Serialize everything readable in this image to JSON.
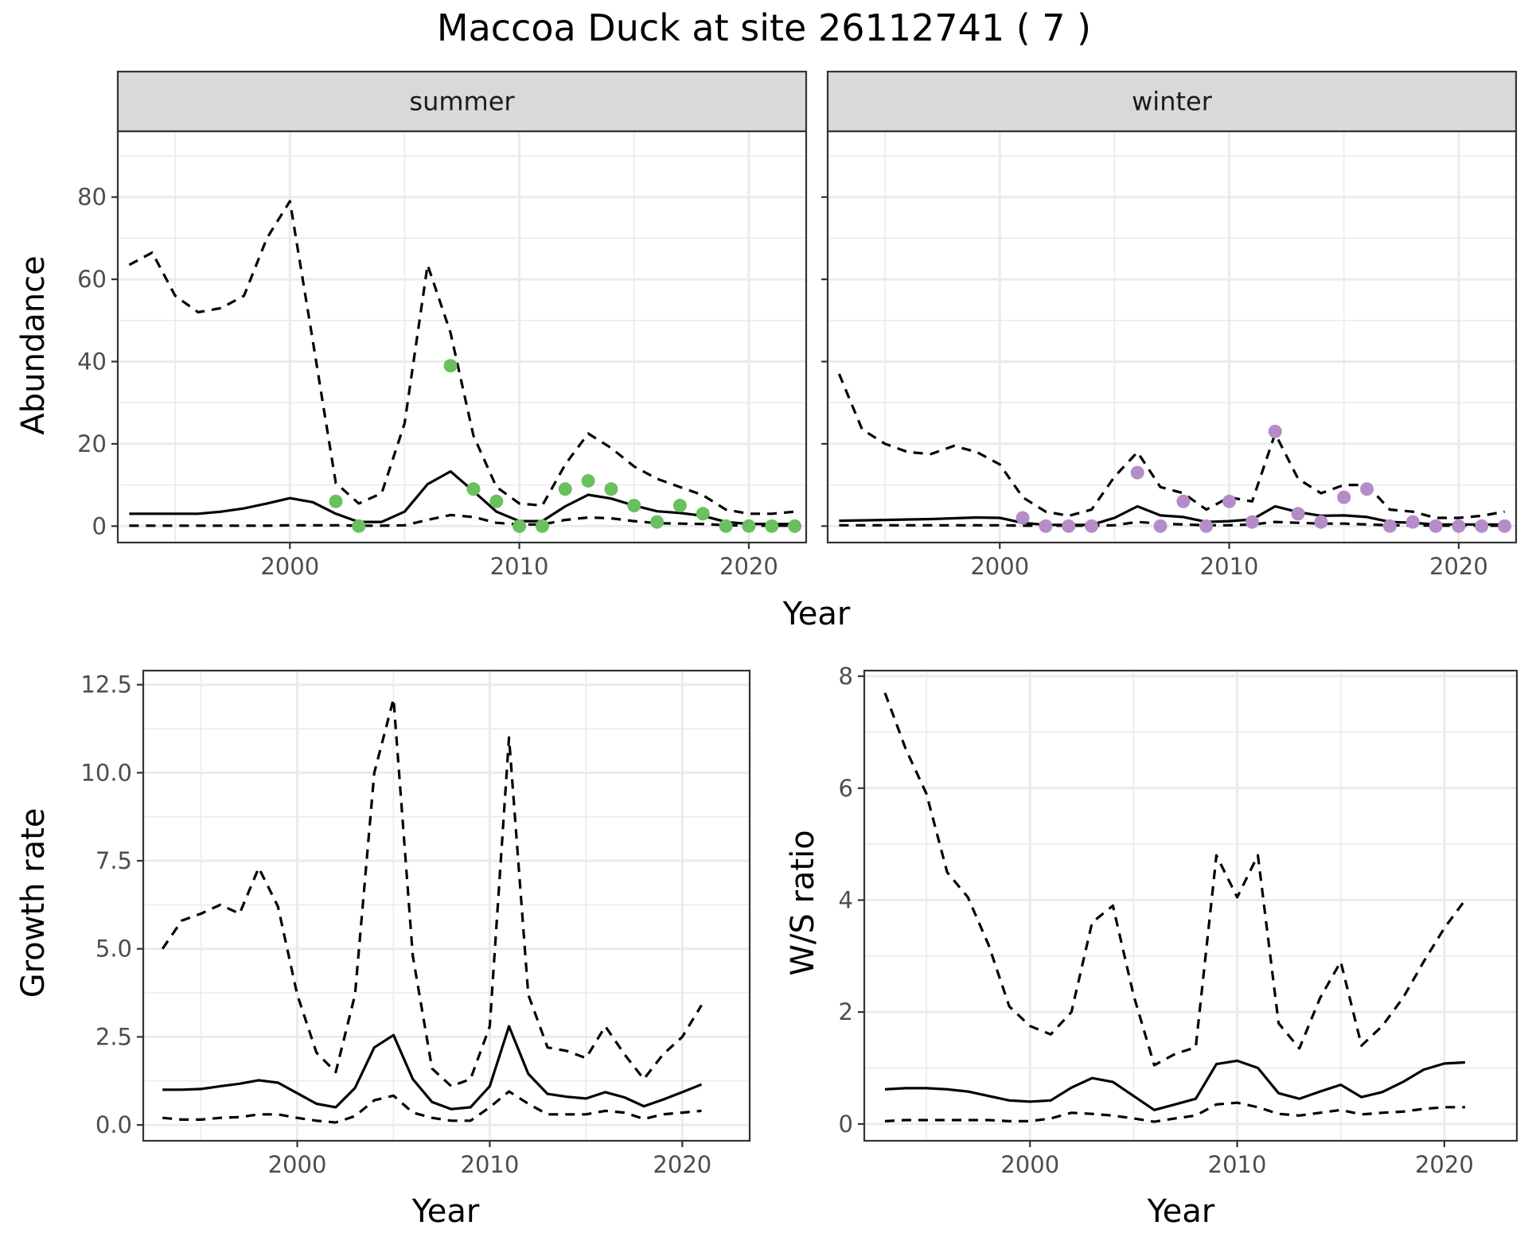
{
  "title": "Maccoa Duck at site 26112741 ( 7 )",
  "colors": {
    "summer_points": "#6abf5e",
    "winter_points": "#b48cc8",
    "line": "#000000",
    "strip_bg": "#d9d9d9",
    "grid": "#ebebeb"
  },
  "chart_data": [
    {
      "type": "line",
      "panel": "summer",
      "strip": "summer",
      "xlabel": "Year",
      "ylabel": "Abundance",
      "xlim": [
        1992.5,
        2022.5
      ],
      "ylim": [
        -4,
        96
      ],
      "xticks": [
        2000,
        2010,
        2020
      ],
      "yticks": [
        0,
        20,
        40,
        60,
        80
      ],
      "grid": true,
      "x": [
        1993,
        1994,
        1995,
        1996,
        1997,
        1998,
        1999,
        2000,
        2001,
        2002,
        2003,
        2004,
        2005,
        2006,
        2007,
        2008,
        2009,
        2010,
        2011,
        2012,
        2013,
        2014,
        2015,
        2016,
        2017,
        2018,
        2019,
        2020,
        2021,
        2022
      ],
      "series": [
        {
          "style": "solid",
          "values": [
            3,
            3,
            3,
            3,
            3.5,
            4.3,
            5.5,
            6.8,
            5.8,
            3,
            1,
            1,
            3.5,
            10.2,
            13.3,
            8.5,
            3.5,
            1.2,
            1.2,
            4.8,
            7.6,
            6.7,
            5,
            3.6,
            3.2,
            2.5,
            1,
            0.5,
            0.5,
            0.5
          ]
        },
        {
          "style": "dashed",
          "values": [
            63.5,
            66.5,
            56,
            52,
            53,
            56,
            70,
            79,
            45,
            10.5,
            5.5,
            8,
            25,
            63.5,
            47,
            22,
            9.5,
            5.5,
            5,
            15,
            22.5,
            19,
            14.5,
            11.5,
            9.5,
            7.5,
            4,
            3,
            3,
            3.5
          ]
        },
        {
          "style": "dashed",
          "values": [
            0.1,
            0.1,
            0.1,
            0.1,
            0.1,
            0.1,
            0.1,
            0.2,
            0.2,
            0.2,
            0.1,
            0.1,
            0.2,
            1.5,
            2.7,
            2.2,
            0.8,
            0.4,
            0.4,
            1.5,
            2.1,
            1.9,
            1.2,
            0.7,
            0.6,
            0.5,
            0.2,
            0.1,
            0.1,
            0.1
          ]
        }
      ],
      "points": {
        "x": [
          2002,
          2003,
          2007,
          2008,
          2009,
          2010,
          2011,
          2012,
          2013,
          2014,
          2015,
          2016,
          2017,
          2018,
          2019,
          2020,
          2021,
          2022
        ],
        "y": [
          6,
          0,
          39,
          9,
          6,
          0,
          0,
          9,
          11,
          9,
          5,
          1,
          5,
          3,
          0,
          0,
          0,
          0
        ]
      }
    },
    {
      "type": "line",
      "panel": "winter",
      "strip": "winter",
      "xlabel": "Year",
      "ylabel": "",
      "xlim": [
        1992.5,
        2022.5
      ],
      "ylim": [
        -4,
        96
      ],
      "xticks": [
        2000,
        2010,
        2020
      ],
      "yticks": [
        0,
        20,
        40,
        60,
        80
      ],
      "grid": true,
      "x": [
        1993,
        1994,
        1995,
        1996,
        1997,
        1998,
        1999,
        2000,
        2001,
        2002,
        2003,
        2004,
        2005,
        2006,
        2007,
        2008,
        2009,
        2010,
        2011,
        2012,
        2013,
        2014,
        2015,
        2016,
        2017,
        2018,
        2019,
        2020,
        2021,
        2022
      ],
      "series": [
        {
          "style": "solid",
          "values": [
            1.3,
            1.4,
            1.5,
            1.6,
            1.7,
            1.9,
            2.1,
            2,
            0.8,
            0.3,
            0.3,
            0.3,
            2,
            4.8,
            2.6,
            2.2,
            1,
            1.2,
            1.6,
            4.8,
            3.4,
            2.5,
            2.6,
            2.2,
            1,
            0.8,
            0.4,
            0.4,
            0.4,
            0.4
          ]
        },
        {
          "style": "dashed",
          "values": [
            37,
            23.5,
            20,
            18,
            17.5,
            19.5,
            18,
            15,
            7,
            3.5,
            2.5,
            4,
            12,
            18,
            9.5,
            8,
            4,
            7,
            6,
            22.5,
            11.5,
            8,
            10,
            10,
            4,
            3.5,
            2,
            2,
            2.5,
            3.5
          ]
        },
        {
          "style": "dashed",
          "values": [
            0.2,
            0.2,
            0.2,
            0.2,
            0.2,
            0.2,
            0.2,
            0.2,
            0.1,
            0.1,
            0.1,
            0.1,
            0.2,
            1,
            0.6,
            0.4,
            0.2,
            0.2,
            0.4,
            1,
            0.8,
            0.6,
            0.6,
            0.4,
            0.2,
            0.2,
            0.1,
            0.1,
            0.1,
            0.1
          ]
        }
      ],
      "points": {
        "x": [
          2001,
          2002,
          2003,
          2004,
          2006,
          2007,
          2008,
          2009,
          2010,
          2011,
          2012,
          2013,
          2014,
          2015,
          2016,
          2017,
          2018,
          2019,
          2020,
          2021,
          2022
        ],
        "y": [
          2,
          0,
          0,
          0,
          13,
          0,
          6,
          0,
          6,
          1,
          23,
          3,
          1,
          7,
          9,
          0,
          1,
          0,
          0,
          0,
          0
        ]
      }
    },
    {
      "type": "line",
      "panel": "growth",
      "xlabel": "Year",
      "ylabel": "Growth rate",
      "xlim": [
        1992,
        2023.5
      ],
      "ylim": [
        -0.45,
        12.9
      ],
      "xticks": [
        2000,
        2010,
        2020
      ],
      "yticks": [
        0.0,
        2.5,
        5.0,
        7.5,
        10.0,
        12.5
      ],
      "ytick_labels": [
        "0.0",
        "2.5",
        "5.0",
        "7.5",
        "10.0",
        "12.5"
      ],
      "grid": true,
      "x": [
        1993,
        1994,
        1995,
        1996,
        1997,
        1998,
        1999,
        2000,
        2001,
        2002,
        2003,
        2004,
        2005,
        2006,
        2007,
        2008,
        2009,
        2010,
        2011,
        2012,
        2013,
        2014,
        2015,
        2016,
        2017,
        2018,
        2019,
        2020,
        2021
      ],
      "series": [
        {
          "style": "solid",
          "values": [
            1,
            1,
            1.02,
            1.1,
            1.17,
            1.27,
            1.2,
            0.9,
            0.6,
            0.5,
            1.05,
            2.2,
            2.55,
            1.3,
            0.65,
            0.45,
            0.5,
            1.1,
            2.8,
            1.45,
            0.88,
            0.8,
            0.75,
            0.93,
            0.78,
            0.53,
            0.72,
            0.93,
            1.15
          ]
        },
        {
          "style": "dashed",
          "values": [
            5,
            5.8,
            6,
            6.25,
            6,
            7.3,
            6.2,
            3.7,
            2.05,
            1.5,
            3.7,
            10,
            12.1,
            4.8,
            1.6,
            1.1,
            1.3,
            2.8,
            11,
            3.7,
            2.2,
            2.1,
            1.9,
            2.8,
            2,
            1.3,
            2,
            2.5,
            3.4
          ]
        },
        {
          "style": "dashed",
          "values": [
            0.2,
            0.15,
            0.15,
            0.2,
            0.22,
            0.3,
            0.3,
            0.2,
            0.12,
            0.07,
            0.25,
            0.7,
            0.83,
            0.35,
            0.2,
            0.12,
            0.12,
            0.5,
            0.95,
            0.6,
            0.3,
            0.3,
            0.3,
            0.4,
            0.35,
            0.17,
            0.3,
            0.35,
            0.4
          ]
        }
      ]
    },
    {
      "type": "line",
      "panel": "ratio",
      "xlabel": "Year",
      "ylabel": "W/S ratio",
      "xlim": [
        1992,
        2023.5
      ],
      "ylim": [
        -0.3,
        8.1
      ],
      "xticks": [
        2000,
        2010,
        2020
      ],
      "yticks": [
        0,
        2,
        4,
        6,
        8
      ],
      "grid": true,
      "x": [
        1993,
        1994,
        1995,
        1996,
        1997,
        1998,
        1999,
        2000,
        2001,
        2002,
        2003,
        2004,
        2005,
        2006,
        2007,
        2008,
        2009,
        2010,
        2011,
        2012,
        2013,
        2014,
        2015,
        2016,
        2017,
        2018,
        2019,
        2020,
        2021
      ],
      "series": [
        {
          "style": "solid",
          "values": [
            0.62,
            0.64,
            0.64,
            0.62,
            0.58,
            0.5,
            0.42,
            0.4,
            0.42,
            0.65,
            0.82,
            0.75,
            0.5,
            0.25,
            0.35,
            0.45,
            1.07,
            1.13,
            1,
            0.55,
            0.45,
            0.58,
            0.7,
            0.48,
            0.57,
            0.75,
            0.97,
            1.08,
            1.1
          ]
        },
        {
          "style": "dashed",
          "values": [
            7.7,
            6.7,
            5.9,
            4.5,
            4.05,
            3.2,
            2.1,
            1.75,
            1.6,
            2,
            3.6,
            3.9,
            2.3,
            1.05,
            1.25,
            1.37,
            4.8,
            4.05,
            4.8,
            1.8,
            1.35,
            2.25,
            2.9,
            1.4,
            1.75,
            2.25,
            2.9,
            3.5,
            4
          ]
        },
        {
          "style": "dashed",
          "values": [
            0.05,
            0.07,
            0.07,
            0.07,
            0.07,
            0.07,
            0.05,
            0.05,
            0.1,
            0.2,
            0.18,
            0.15,
            0.1,
            0.04,
            0.1,
            0.15,
            0.35,
            0.38,
            0.3,
            0.18,
            0.15,
            0.2,
            0.25,
            0.17,
            0.2,
            0.22,
            0.27,
            0.3,
            0.3
          ]
        }
      ]
    }
  ]
}
